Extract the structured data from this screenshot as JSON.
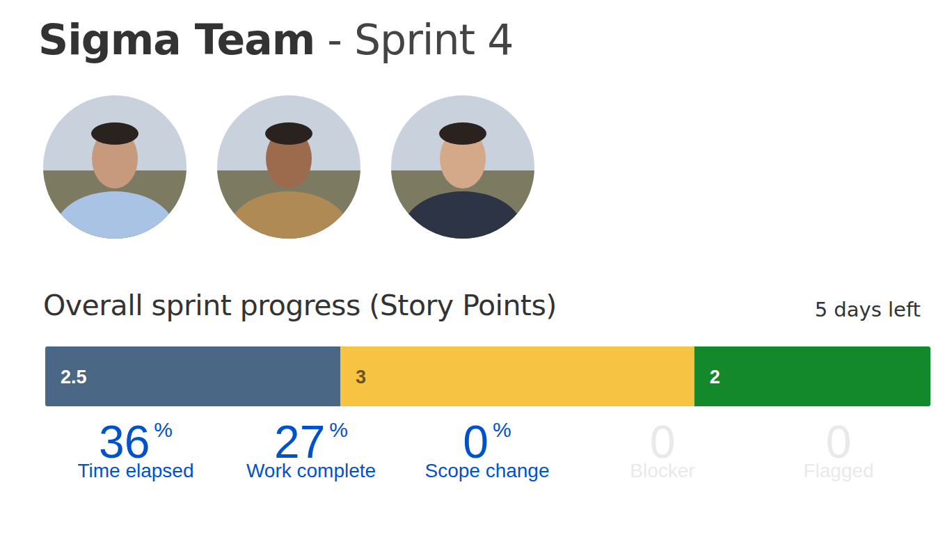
{
  "header": {
    "team": "Sigma Team",
    "sprint": "- Sprint 4"
  },
  "chart_data": {
    "type": "bar",
    "orientation": "horizontal",
    "stacked": true,
    "title": "Overall sprint progress (Story Points)",
    "subtitle": "5 days left",
    "categories": [
      null
    ],
    "series": [
      {
        "color": "#4a6785",
        "values": [
          2.5
        ]
      },
      {
        "color": "#f6c342",
        "values": [
          3
        ]
      },
      {
        "color": "#14892c",
        "values": [
          2
        ]
      }
    ],
    "xlim": [
      0,
      7.5
    ],
    "data_labels": true,
    "tick_labels": false,
    "grid": false
  },
  "metrics": [
    {
      "value": 36,
      "unit": "%",
      "label": "Time elapsed",
      "color": "#0052cc"
    },
    {
      "value": 27,
      "unit": "%",
      "label": "Work complete",
      "color": "#0052cc"
    },
    {
      "value": 0,
      "unit": "%",
      "label": "Scope change",
      "color": "#0052cc"
    },
    {
      "value": 0,
      "label": "Blocker",
      "color": "#e9e9e9"
    },
    {
      "value": 0,
      "label": "Flagged",
      "color": "#e9e9e9"
    }
  ]
}
